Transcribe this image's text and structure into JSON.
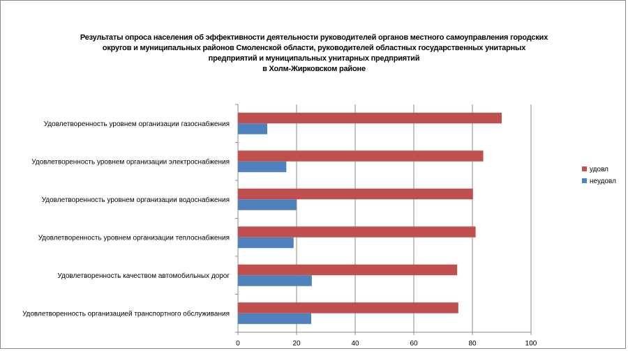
{
  "chart_data": {
    "type": "bar",
    "orientation": "horizontal",
    "title_lines": [
      "Результаты опроса населения об эффективности деятельности руководителей органов местного самоуправления городских",
      "округов и муниципальных районов Смоленской области, руководителей областных государственных унитарных",
      "предприятий и муниципальных унитарных предприятий",
      "в Холм-Жирковском районе"
    ],
    "categories": [
      "Удовлетворенность уровнем организации газоснабжения",
      "Удовлетворенность уровнем организации электроснабжения",
      "Удовлетворенность уровнем организации водоснабжения",
      "Удовлетворенность уровнем организации теплоснабжения",
      "Удовлетворенность качеством автомобильных дорог",
      "Удовлетворенность организацией транспортного обслуживания"
    ],
    "series": [
      {
        "name": "удовл",
        "color": "#C0504D",
        "values": [
          90,
          83.7,
          80.2,
          81.1,
          74.8,
          75.2
        ]
      },
      {
        "name": "неудовл",
        "color": "#4F81BD",
        "values": [
          10,
          16.5,
          19.9,
          19.0,
          25.2,
          25.0
        ]
      }
    ],
    "xlim": [
      0,
      100
    ],
    "xticks": [
      "0",
      "20",
      "40",
      "60",
      "80",
      "100"
    ],
    "grid": true,
    "legend": "right"
  }
}
